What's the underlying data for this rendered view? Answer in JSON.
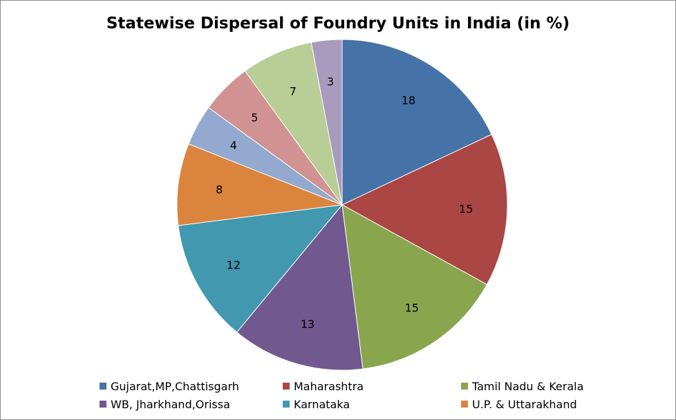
{
  "chart_data": {
    "type": "pie",
    "title": "Statewise Dispersal of Foundry Units in India (in %)",
    "slices": [
      {
        "label": "Gujarat,MP,Chattisgarh",
        "value": 18,
        "color": "#4572A7"
      },
      {
        "label": "Maharashtra",
        "value": 15,
        "color": "#AA4643"
      },
      {
        "label": "Tamil Nadu & Kerala",
        "value": 15,
        "color": "#89A54E"
      },
      {
        "label": "WB, Jharkhand,Orissa",
        "value": 13,
        "color": "#71588F"
      },
      {
        "label": "Karnataka",
        "value": 12,
        "color": "#4198AF"
      },
      {
        "label": "U.P. & Uttarakhand",
        "value": 8,
        "color": "#DB843D"
      },
      {
        "label": "",
        "value": 4,
        "color": "#93A9CF"
      },
      {
        "label": "",
        "value": 5,
        "color": "#D19392"
      },
      {
        "label": "",
        "value": 7,
        "color": "#B9CD96"
      },
      {
        "label": "",
        "value": 3,
        "color": "#A99BBD"
      }
    ],
    "data_labels": "inside",
    "legend_position": "bottom"
  }
}
